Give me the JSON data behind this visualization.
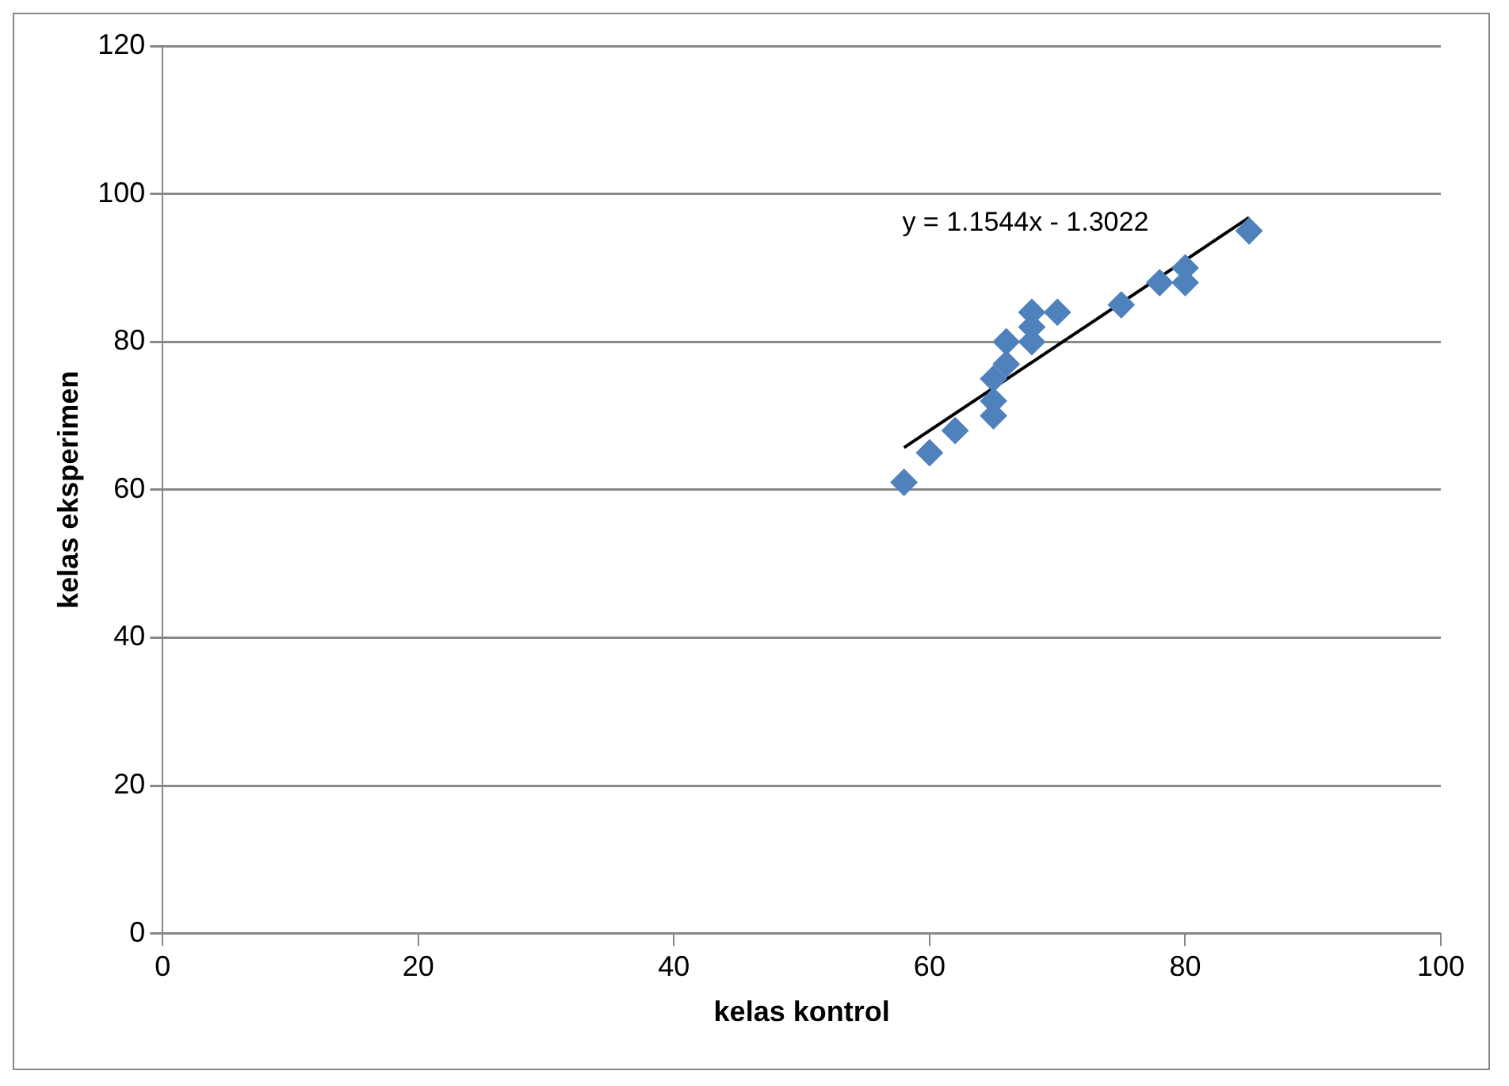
{
  "chart_data": {
    "type": "scatter",
    "xlabel": "kelas kontrol",
    "ylabel": "kelas eksperimen",
    "xlim": [
      0,
      100
    ],
    "xticks": [
      0,
      20,
      40,
      60,
      80,
      100
    ],
    "ylim": [
      0,
      120
    ],
    "yticks": [
      0,
      20,
      40,
      60,
      80,
      100,
      120
    ],
    "grid": "y",
    "legend": false,
    "annotations": [
      "y = 1.1544x - 1.3022"
    ],
    "series": [
      {
        "marker": "diamond",
        "color": "#4f81bd",
        "x": [
          58,
          60,
          62,
          65,
          65,
          65,
          66,
          66,
          68,
          68,
          68,
          70,
          75,
          78,
          80,
          80,
          85
        ],
        "values": [
          61,
          65,
          68,
          70,
          72,
          75,
          77,
          80,
          80,
          82,
          84,
          84,
          85,
          88,
          88,
          90,
          95
        ]
      },
      {
        "type": "line",
        "color": "#000000",
        "x": [
          58,
          85
        ],
        "values": [
          65.7,
          96.8
        ],
        "marker": "none"
      }
    ]
  }
}
